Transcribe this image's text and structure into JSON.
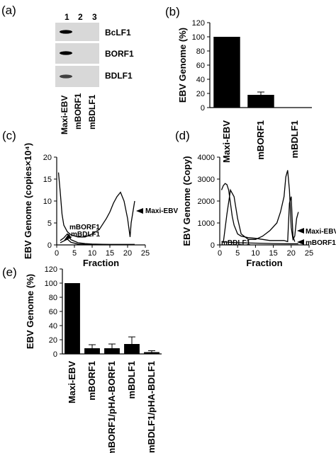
{
  "panels": {
    "a": "(a)",
    "b": "(b)",
    "c": "(c)",
    "d": "(d)",
    "e": "(e)"
  },
  "blot": {
    "lane_numbers": [
      "1",
      "2",
      "3"
    ],
    "lane_labels": [
      "Maxi-EBV",
      "mBORF1",
      "mBDLF1"
    ],
    "bands": [
      "BcLF1",
      "BORF1",
      "BDLF1"
    ],
    "band_intensity": [
      [
        1.0,
        0.05,
        0.03
      ],
      [
        1.0,
        0.04,
        0.03
      ],
      [
        0.7,
        0.03,
        0.03
      ]
    ]
  },
  "chart_data": [
    {
      "id": "b",
      "type": "bar",
      "ylabel": "EBV Genome (%)",
      "xlabel": "",
      "categories": [
        "Maxi-EBV",
        "mBORF1",
        "mBDLF1"
      ],
      "values": [
        100,
        18,
        0.5
      ],
      "errors": [
        0,
        4,
        0
      ],
      "ylim": [
        0,
        120
      ],
      "yticks": [
        0,
        20,
        40,
        60,
        80,
        100,
        120
      ]
    },
    {
      "id": "c",
      "type": "line",
      "ylabel": "EBV Genome (copies×10⁴)",
      "xlabel": "Fraction",
      "xlim": [
        0,
        25
      ],
      "ylim": [
        0,
        20
      ],
      "xticks": [
        0,
        5,
        10,
        15,
        20,
        25
      ],
      "yticks": [
        0,
        5,
        10,
        15,
        20
      ],
      "series": [
        {
          "name": "Maxi-EBV",
          "x": [
            0.5,
            1,
            1.5,
            2,
            3,
            4,
            6,
            8,
            10,
            12,
            14,
            15,
            16,
            17,
            18,
            19,
            20,
            20.7,
            21,
            22
          ],
          "y": [
            16.5,
            12,
            7,
            4.5,
            3,
            2.3,
            1.8,
            1.8,
            2.5,
            3.5,
            6,
            7.5,
            9.5,
            11,
            12,
            10,
            6,
            1.8,
            5,
            10
          ]
        },
        {
          "name": "mBORF1",
          "x": [
            1,
            2,
            3,
            4,
            6,
            8,
            10,
            15,
            20,
            22
          ],
          "y": [
            1.0,
            1.6,
            2.5,
            1.2,
            0.5,
            0.3,
            0.2,
            0.1,
            0.1,
            0.1
          ]
        },
        {
          "name": "mBDLF1",
          "x": [
            1,
            2,
            3,
            4,
            6,
            10,
            15,
            20,
            22
          ],
          "y": [
            0.5,
            0.9,
            1.3,
            0.6,
            0.2,
            0.1,
            0.1,
            0.1,
            0.1
          ]
        }
      ],
      "annotations": [
        "Maxi-EBV",
        "mBORF1",
        "mBDLF1"
      ]
    },
    {
      "id": "d",
      "type": "line",
      "ylabel": "EBV Genome (Copy)",
      "xlabel": "Fraction",
      "xlim": [
        0,
        25
      ],
      "ylim": [
        0,
        4000
      ],
      "xticks": [
        0,
        5,
        10,
        15,
        20,
        25
      ],
      "yticks": [
        0,
        1000,
        2000,
        3000,
        4000
      ],
      "series": [
        {
          "name": "Maxi-EBV",
          "x": [
            1,
            2,
            3,
            4,
            5,
            6,
            8,
            10,
            12,
            14,
            16,
            17,
            18,
            18.5,
            19,
            19.5,
            20,
            20.5,
            21,
            21.5,
            22
          ],
          "y": [
            100,
            1400,
            2500,
            2200,
            1200,
            500,
            250,
            250,
            400,
            650,
            1000,
            1500,
            2200,
            3100,
            3400,
            2500,
            800,
            250,
            400,
            1200,
            1500
          ]
        },
        {
          "name": "mBORF1",
          "x": [
            0.5,
            1,
            1.5,
            2,
            2.5,
            3,
            3.5,
            4,
            5,
            6,
            8,
            10,
            14,
            18,
            19,
            19.5,
            20,
            20.5,
            21
          ],
          "y": [
            2500,
            2700,
            2800,
            2750,
            2500,
            1900,
            1300,
            900,
            500,
            400,
            330,
            300,
            200,
            200,
            150,
            1900,
            2200,
            400,
            150
          ]
        },
        {
          "name": "mBDLF1",
          "x": [
            0.5,
            2,
            5,
            10,
            15,
            20,
            22
          ],
          "y": [
            150,
            130,
            100,
            80,
            60,
            50,
            50
          ]
        }
      ],
      "annotations": [
        "Maxi-EBV",
        "mBDLF1",
        "mBORF1"
      ]
    },
    {
      "id": "e",
      "type": "bar",
      "ylabel": "EBV Genome (%)",
      "xlabel": "",
      "categories": [
        "Maxi-EBV",
        "mBORF1",
        "mBORF1/pHA-BORF1",
        "mBDLF1",
        "mBDLF1/pHA-BDLF1"
      ],
      "values": [
        100,
        8,
        8,
        14,
        2.5
      ],
      "errors": [
        0,
        5,
        6,
        10,
        2
      ],
      "ylim": [
        0,
        120
      ],
      "yticks": [
        0,
        20,
        40,
        60,
        80,
        100,
        120
      ]
    }
  ]
}
